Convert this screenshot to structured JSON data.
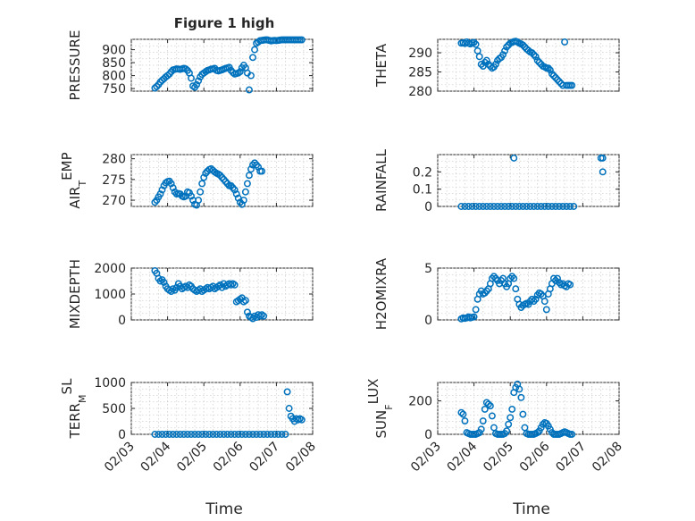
{
  "figure": {
    "title": "Figure 1 high",
    "xlabel": "Time"
  },
  "colors": {
    "marker": "#0072BD",
    "axes": "#262626",
    "grid": "#d0d0d0"
  },
  "chart_data": [
    {
      "type": "scatter",
      "id": "pressure",
      "ylabel": "PRESSURE",
      "title": "Figure 1 high",
      "xlim": [
        0,
        5
      ],
      "ylim": [
        740,
        940
      ],
      "yticks": [
        750,
        800,
        850,
        900
      ],
      "xticks": [
        "02/03",
        "02/04",
        "02/05",
        "02/06",
        "02/07",
        "02/08"
      ],
      "show_xticks": false,
      "grid": true,
      "x": [
        0.65,
        0.7,
        0.75,
        0.8,
        0.85,
        0.9,
        0.95,
        1.0,
        1.05,
        1.1,
        1.15,
        1.2,
        1.25,
        1.3,
        1.35,
        1.4,
        1.45,
        1.5,
        1.55,
        1.6,
        1.65,
        1.7,
        1.75,
        1.8,
        1.85,
        1.9,
        1.95,
        2.0,
        2.05,
        2.1,
        2.15,
        2.2,
        2.25,
        2.3,
        2.35,
        2.4,
        2.45,
        2.5,
        2.55,
        2.6,
        2.65,
        2.7,
        2.75,
        2.8,
        2.85,
        2.9,
        2.95,
        3.0,
        3.05,
        3.1,
        3.15,
        3.2,
        3.25,
        3.3,
        3.35,
        3.4,
        3.45,
        3.5,
        3.55,
        3.6,
        3.65,
        3.7,
        3.75,
        3.8,
        3.85,
        3.9,
        3.95,
        4.0,
        4.05,
        4.1,
        4.15,
        4.2,
        4.25,
        4.3,
        4.35,
        4.4,
        4.45,
        4.5,
        4.55,
        4.6,
        4.65,
        4.7
      ],
      "y": [
        752,
        758,
        765,
        775,
        782,
        788,
        795,
        800,
        806,
        815,
        822,
        824,
        826,
        825,
        824,
        826,
        828,
        826,
        820,
        810,
        790,
        760,
        755,
        765,
        780,
        795,
        805,
        810,
        815,
        820,
        822,
        825,
        826,
        828,
        820,
        818,
        820,
        822,
        825,
        828,
        830,
        832,
        820,
        812,
        806,
        808,
        810,
        815,
        830,
        840,
        830,
        810,
        745,
        800,
        870,
        900,
        925,
        930,
        935,
        936,
        937,
        938,
        938,
        936,
        934,
        935,
        936,
        935,
        936,
        937,
        938,
        938,
        938,
        938,
        938,
        938,
        938,
        938,
        938,
        938,
        938,
        938
      ]
    },
    {
      "type": "scatter",
      "id": "theta",
      "ylabel": "THETA",
      "xlim": [
        0,
        5
      ],
      "ylim": [
        280,
        293.5
      ],
      "yticks": [
        280,
        285,
        290
      ],
      "xticks": [
        "02/03",
        "02/04",
        "02/05",
        "02/06",
        "02/07",
        "02/08"
      ],
      "show_xticks": false,
      "grid": true,
      "x": [
        0.65,
        0.7,
        0.75,
        0.8,
        0.85,
        0.9,
        0.95,
        1.0,
        1.05,
        1.1,
        1.15,
        1.2,
        1.25,
        1.3,
        1.35,
        1.4,
        1.45,
        1.5,
        1.55,
        1.6,
        1.65,
        1.7,
        1.75,
        1.8,
        1.85,
        1.9,
        1.95,
        2.0,
        2.05,
        2.1,
        2.15,
        2.2,
        2.25,
        2.3,
        2.35,
        2.4,
        2.45,
        2.5,
        2.55,
        2.6,
        2.65,
        2.7,
        2.75,
        2.8,
        2.85,
        2.9,
        2.95,
        3.0,
        3.05,
        3.1,
        3.15,
        3.2,
        3.25,
        3.3,
        3.35,
        3.4,
        3.45,
        3.5,
        3.55,
        3.6,
        3.65,
        3.7
      ],
      "y": [
        292.5,
        292.6,
        292.4,
        292.8,
        292.5,
        292.3,
        292.6,
        292.7,
        292.2,
        290.5,
        289.0,
        287.0,
        286.5,
        287.5,
        288.0,
        287.0,
        286.5,
        286.0,
        286.3,
        287.0,
        288.0,
        288.5,
        288.8,
        289.5,
        290.5,
        291.5,
        292.0,
        292.5,
        292.7,
        292.9,
        293.0,
        292.8,
        292.5,
        292.3,
        292.0,
        291.5,
        291.0,
        290.6,
        290.2,
        290.0,
        289.5,
        289.0,
        288.0,
        287.5,
        287.0,
        286.5,
        286.3,
        286.0,
        286.0,
        285.5,
        284.5,
        284.0,
        283.5,
        283.0,
        282.5,
        282.0,
        281.5,
        292.8,
        281.5,
        281.5,
        281.5,
        281.5
      ]
    },
    {
      "type": "scatter",
      "id": "air_temp",
      "ylabel": "AIR_TEMP",
      "xlim": [
        0,
        5
      ],
      "ylim": [
        268.5,
        281
      ],
      "yticks": [
        270,
        275,
        280
      ],
      "xticks": [
        "02/03",
        "02/04",
        "02/05",
        "02/06",
        "02/07",
        "02/08"
      ],
      "show_xticks": false,
      "grid": true,
      "x": [
        0.65,
        0.7,
        0.75,
        0.8,
        0.85,
        0.9,
        0.95,
        1.0,
        1.05,
        1.1,
        1.15,
        1.2,
        1.25,
        1.3,
        1.35,
        1.4,
        1.45,
        1.5,
        1.55,
        1.6,
        1.65,
        1.7,
        1.75,
        1.8,
        1.85,
        1.9,
        1.95,
        2.0,
        2.05,
        2.1,
        2.15,
        2.2,
        2.25,
        2.3,
        2.35,
        2.4,
        2.45,
        2.5,
        2.55,
        2.6,
        2.65,
        2.7,
        2.75,
        2.8,
        2.85,
        2.9,
        2.95,
        3.0,
        3.05,
        3.1,
        3.15,
        3.2,
        3.25,
        3.3,
        3.35,
        3.4,
        3.45,
        3.5,
        3.55,
        3.6
      ],
      "y": [
        269.5,
        270.0,
        270.8,
        271.5,
        272.5,
        273.5,
        274.2,
        274.5,
        274.6,
        274.0,
        273.0,
        272.0,
        271.5,
        271.6,
        271.5,
        271.0,
        270.8,
        271.0,
        272.0,
        271.8,
        271.0,
        270.0,
        269.0,
        268.8,
        270.0,
        272.0,
        274.0,
        275.5,
        276.5,
        277.0,
        277.4,
        277.6,
        277.2,
        276.8,
        276.5,
        276.3,
        276.0,
        275.5,
        275.0,
        274.5,
        274.0,
        273.5,
        273.5,
        273.0,
        272.5,
        271.5,
        270.5,
        269.5,
        269.0,
        270.0,
        272.0,
        274.0,
        276.0,
        277.5,
        278.5,
        279.0,
        278.5,
        278.0,
        277.0,
        277.0
      ]
    },
    {
      "type": "scatter",
      "id": "rainfall",
      "ylabel": "RAINFALL",
      "xlim": [
        0,
        5
      ],
      "ylim": [
        0,
        0.3
      ],
      "yticks": [
        0,
        0.1,
        0.2
      ],
      "xticks": [
        "02/03",
        "02/04",
        "02/05",
        "02/06",
        "02/07",
        "02/08"
      ],
      "show_xticks": false,
      "grid": true,
      "x": [
        0.65,
        0.75,
        0.85,
        0.95,
        1.05,
        1.15,
        1.25,
        1.35,
        1.45,
        1.55,
        1.65,
        1.75,
        1.85,
        1.95,
        2.05,
        2.15,
        2.25,
        2.35,
        2.45,
        2.55,
        2.65,
        2.75,
        2.85,
        2.95,
        3.05,
        3.15,
        3.25,
        3.35,
        3.45,
        3.55,
        3.65,
        3.75,
        2.1,
        4.5,
        4.55,
        4.55
      ],
      "y": [
        0,
        0,
        0,
        0,
        0,
        0,
        0,
        0,
        0,
        0,
        0,
        0,
        0,
        0,
        0,
        0,
        0,
        0,
        0,
        0,
        0,
        0,
        0,
        0,
        0,
        0,
        0,
        0,
        0,
        0,
        0,
        0,
        0.28,
        0.28,
        0.28,
        0.2
      ]
    },
    {
      "type": "scatter",
      "id": "mixdepth",
      "ylabel": "MIXDEPTH",
      "xlim": [
        0,
        5
      ],
      "ylim": [
        0,
        2000
      ],
      "yticks": [
        0,
        1000,
        2000
      ],
      "xticks": [
        "02/03",
        "02/04",
        "02/05",
        "02/06",
        "02/07",
        "02/08"
      ],
      "show_xticks": false,
      "grid": true,
      "x": [
        0.65,
        0.7,
        0.75,
        0.8,
        0.85,
        0.9,
        0.95,
        1.0,
        1.05,
        1.1,
        1.15,
        1.2,
        1.25,
        1.3,
        1.35,
        1.4,
        1.45,
        1.5,
        1.55,
        1.6,
        1.65,
        1.7,
        1.75,
        1.8,
        1.85,
        1.9,
        1.95,
        2.0,
        2.05,
        2.1,
        2.15,
        2.2,
        2.25,
        2.3,
        2.35,
        2.4,
        2.45,
        2.5,
        2.55,
        2.6,
        2.65,
        2.7,
        2.75,
        2.8,
        2.85,
        2.9,
        2.95,
        3.0,
        3.05,
        3.1,
        3.15,
        3.2,
        3.25,
        3.3,
        3.35,
        3.4,
        3.45,
        3.5,
        3.55,
        3.6,
        3.65
      ],
      "y": [
        1900,
        1800,
        1600,
        1500,
        1550,
        1450,
        1300,
        1200,
        1150,
        1100,
        1200,
        1150,
        1250,
        1400,
        1300,
        1200,
        1250,
        1300,
        1250,
        1350,
        1300,
        1200,
        1150,
        1100,
        1150,
        1200,
        1100,
        1150,
        1200,
        1250,
        1200,
        1250,
        1300,
        1200,
        1250,
        1300,
        1350,
        1250,
        1400,
        1300,
        1350,
        1400,
        1350,
        1400,
        1350,
        700,
        750,
        800,
        850,
        700,
        750,
        300,
        150,
        100,
        50,
        150,
        100,
        200,
        150,
        200,
        150
      ]
    },
    {
      "type": "scatter",
      "id": "h2omixra",
      "ylabel": "H2OMIXRA",
      "xlim": [
        0,
        5
      ],
      "ylim": [
        0,
        5
      ],
      "yticks": [
        0,
        5
      ],
      "xticks": [
        "02/03",
        "02/04",
        "02/05",
        "02/06",
        "02/07",
        "02/08"
      ],
      "show_xticks": false,
      "grid": true,
      "x": [
        0.65,
        0.7,
        0.75,
        0.8,
        0.85,
        0.9,
        0.95,
        1.0,
        1.05,
        1.1,
        1.15,
        1.2,
        1.25,
        1.3,
        1.35,
        1.4,
        1.45,
        1.5,
        1.55,
        1.6,
        1.65,
        1.7,
        1.75,
        1.8,
        1.85,
        1.9,
        1.95,
        2.0,
        2.05,
        2.1,
        2.15,
        2.2,
        2.25,
        2.3,
        2.35,
        2.4,
        2.45,
        2.5,
        2.55,
        2.6,
        2.65,
        2.7,
        2.75,
        2.8,
        2.85,
        2.9,
        2.95,
        3.0,
        3.05,
        3.1,
        3.15,
        3.2,
        3.25,
        3.3,
        3.35,
        3.4,
        3.45,
        3.5,
        3.55,
        3.6,
        3.65
      ],
      "y": [
        0.1,
        0.2,
        0.15,
        0.2,
        0.3,
        0.2,
        0.25,
        0.3,
        1.0,
        2.0,
        2.5,
        2.8,
        2.5,
        2.6,
        2.8,
        3.0,
        3.5,
        4.0,
        4.2,
        4.0,
        3.8,
        3.5,
        3.8,
        4.0,
        3.5,
        3.2,
        3.5,
        4.0,
        4.2,
        4.0,
        3.0,
        2.0,
        1.5,
        1.2,
        1.4,
        1.5,
        1.6,
        1.5,
        1.8,
        2.0,
        1.8,
        2.0,
        2.4,
        2.6,
        2.5,
        2.3,
        1.8,
        1.0,
        2.5,
        3.0,
        3.5,
        4.0,
        3.8,
        4.0,
        3.6,
        3.4,
        3.5,
        3.3,
        3.2,
        3.5,
        3.4
      ]
    },
    {
      "type": "scatter",
      "id": "terr_msl",
      "ylabel": "TERR_MSL",
      "xlim": [
        0,
        5
      ],
      "ylim": [
        0,
        1000
      ],
      "yticks": [
        0,
        500,
        1000
      ],
      "xticks": [
        "02/03",
        "02/04",
        "02/05",
        "02/06",
        "02/07",
        "02/08"
      ],
      "show_xticks": true,
      "grid": true,
      "x": [
        0.65,
        0.75,
        0.85,
        0.95,
        1.05,
        1.15,
        1.25,
        1.35,
        1.45,
        1.55,
        1.65,
        1.75,
        1.85,
        1.95,
        2.05,
        2.15,
        2.25,
        2.35,
        2.45,
        2.55,
        2.65,
        2.75,
        2.85,
        2.95,
        3.05,
        3.15,
        3.25,
        3.35,
        3.45,
        3.55,
        3.65,
        3.75,
        3.85,
        3.95,
        4.05,
        4.15,
        4.25,
        4.3,
        4.35,
        4.4,
        4.45,
        4.5,
        4.55,
        4.6,
        4.65,
        4.7
      ],
      "y": [
        0,
        0,
        0,
        0,
        0,
        0,
        0,
        0,
        0,
        0,
        0,
        0,
        0,
        0,
        0,
        0,
        0,
        0,
        0,
        0,
        0,
        0,
        0,
        0,
        0,
        0,
        0,
        0,
        0,
        0,
        0,
        0,
        0,
        0,
        0,
        0,
        0,
        820,
        500,
        350,
        300,
        250,
        300,
        280,
        300,
        280
      ]
    },
    {
      "type": "scatter",
      "id": "sun_flux",
      "ylabel": "SUN_FLUX",
      "xlim": [
        0,
        5
      ],
      "ylim": [
        0,
        310
      ],
      "yticks": [
        0,
        200
      ],
      "xticks": [
        "02/03",
        "02/04",
        "02/05",
        "02/06",
        "02/07",
        "02/08"
      ],
      "show_xticks": true,
      "grid": true,
      "x": [
        0.65,
        0.7,
        0.75,
        0.8,
        0.85,
        0.9,
        0.95,
        1.0,
        1.05,
        1.1,
        1.15,
        1.2,
        1.25,
        1.3,
        1.35,
        1.4,
        1.45,
        1.5,
        1.55,
        1.6,
        1.65,
        1.7,
        1.75,
        1.8,
        1.85,
        1.9,
        1.95,
        2.0,
        2.05,
        2.1,
        2.15,
        2.2,
        2.25,
        2.3,
        2.35,
        2.4,
        2.45,
        2.5,
        2.55,
        2.6,
        2.65,
        2.7,
        2.75,
        2.8,
        2.85,
        2.9,
        2.95,
        3.0,
        3.05,
        3.1,
        3.15,
        3.2,
        3.25,
        3.3,
        3.35,
        3.4,
        3.45,
        3.5,
        3.55,
        3.6,
        3.65,
        3.7
      ],
      "y": [
        130,
        120,
        80,
        10,
        5,
        0,
        0,
        0,
        0,
        5,
        10,
        30,
        80,
        150,
        190,
        180,
        170,
        110,
        40,
        5,
        0,
        0,
        0,
        0,
        5,
        20,
        60,
        100,
        150,
        250,
        280,
        300,
        270,
        220,
        120,
        40,
        5,
        0,
        0,
        0,
        0,
        5,
        10,
        20,
        40,
        60,
        70,
        65,
        50,
        30,
        10,
        0,
        0,
        0,
        0,
        5,
        10,
        15,
        10,
        5,
        0,
        0
      ]
    }
  ]
}
